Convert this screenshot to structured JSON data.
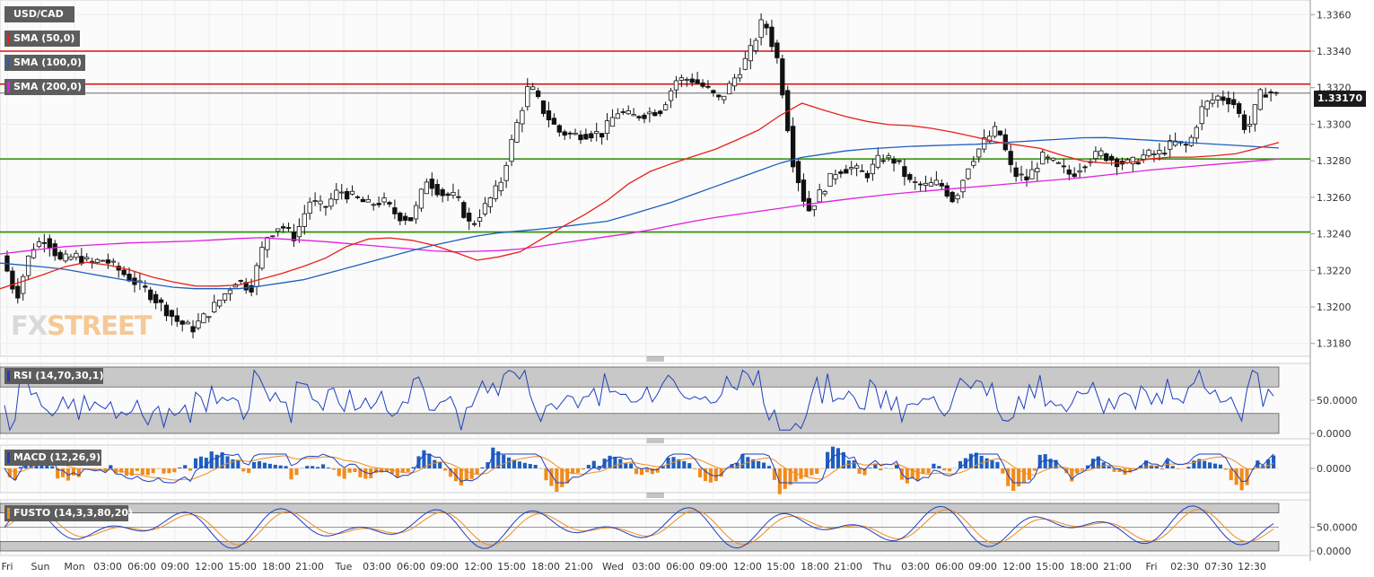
{
  "labels": {
    "symbol": "USD/CAD",
    "sma50": "SMA (50,0)",
    "sma100": "SMA (100,0)",
    "sma200": "SMA (200,0)",
    "rsi": "RSI (14,70,30,1)",
    "macd": "MACD (12,26,9)",
    "fusto": "FUSTO (14,3,3,80,20)"
  },
  "current_price": "1.33170",
  "logo": {
    "part1": "FX",
    "part2": "STREET"
  },
  "colors": {
    "sma50": "#e8201a",
    "sma100": "#1f5fbf",
    "sma200": "#e020e0",
    "resistance": "#dd1111",
    "support": "#2a8a00",
    "rsi_line": "#1f3fbf",
    "macd_line": "#1f3fbf",
    "signal_line": "#f08c1c",
    "hist_pos": "#1f5fbf",
    "hist_neg": "#f08c1c"
  },
  "chart_data": {
    "type": "candlestick",
    "y_ticks": [
      "1.3360",
      "1.3340",
      "1.3320",
      "1.3300",
      "1.3280",
      "1.3260",
      "1.3240",
      "1.3220",
      "1.3200",
      "1.3180"
    ],
    "ylim": [
      1.3173,
      1.3368
    ],
    "resistance_levels": [
      1.334,
      1.3322
    ],
    "support_levels": [
      1.3281,
      1.3241
    ],
    "last_price": 1.3317,
    "x_ticks": [
      "Fri",
      "Sun",
      "Mon",
      "03:00",
      "06:00",
      "09:00",
      "12:00",
      "15:00",
      "18:00",
      "21:00",
      "Tue",
      "03:00",
      "06:00",
      "09:00",
      "12:00",
      "15:00",
      "18:00",
      "21:00",
      "Wed",
      "03:00",
      "06:00",
      "09:00",
      "12:00",
      "15:00",
      "18:00",
      "21:00",
      "Thu",
      "03:00",
      "06:00",
      "09:00",
      "12:00",
      "15:00",
      "18:00",
      "21:00",
      "Fri",
      "02:30",
      "07:30",
      "12:30"
    ],
    "price_path": [
      1.3228,
      1.3205,
      1.3232,
      1.3238,
      1.3225,
      1.3228,
      1.3224,
      1.3226,
      1.322,
      1.3214,
      1.3208,
      1.32,
      1.3192,
      1.3188,
      1.3196,
      1.3205,
      1.3215,
      1.321,
      1.3238,
      1.3245,
      1.3238,
      1.3258,
      1.3254,
      1.3264,
      1.326,
      1.3256,
      1.3258,
      1.325,
      1.3248,
      1.327,
      1.3262,
      1.326,
      1.3244,
      1.3255,
      1.3267,
      1.3296,
      1.3322,
      1.3307,
      1.3296,
      1.3294,
      1.3295,
      1.3295,
      1.3307,
      1.3304,
      1.3306,
      1.3308,
      1.3324,
      1.3325,
      1.332,
      1.3313,
      1.3325,
      1.3338,
      1.3358,
      1.3334,
      1.328,
      1.3252,
      1.3264,
      1.3275,
      1.3276,
      1.3272,
      1.3282,
      1.328,
      1.3268,
      1.3266,
      1.3268,
      1.3258,
      1.3278,
      1.329,
      1.3298,
      1.3273,
      1.327,
      1.3282,
      1.3278,
      1.3272,
      1.328,
      1.3284,
      1.328,
      1.3278,
      1.3283,
      1.3284,
      1.329,
      1.3288,
      1.331,
      1.3315,
      1.3313,
      1.3296,
      1.3318,
      1.3317
    ],
    "sma50": [
      1.321,
      1.3217,
      1.3225,
      1.3222,
      1.3215,
      1.3211,
      1.3212,
      1.3218,
      1.3225,
      1.3237,
      1.3238,
      1.3233,
      1.3225,
      1.323,
      1.3243,
      1.3255,
      1.3272,
      1.328,
      1.3287,
      1.3297,
      1.3312,
      1.3305,
      1.33,
      1.3299,
      1.3295,
      1.329,
      1.3287,
      1.328,
      1.3278,
      1.3282,
      1.3282,
      1.3284,
      1.329
    ],
    "sma100": [
      1.3224,
      1.3221,
      1.3215,
      1.321,
      1.321,
      1.3215,
      1.3224,
      1.3233,
      1.324,
      1.3243,
      1.3247,
      1.3257,
      1.3269,
      1.3281,
      1.3286,
      1.3288,
      1.3289,
      1.3291,
      1.3293,
      1.3291,
      1.3289,
      1.3287
    ],
    "sma200": [
      1.3229,
      1.3233,
      1.3235,
      1.3236,
      1.3238,
      1.3236,
      1.3233,
      1.323,
      1.3231,
      1.3236,
      1.3241,
      1.3248,
      1.3253,
      1.3258,
      1.3262,
      1.3265,
      1.3268,
      1.3271,
      1.3275,
      1.3278,
      1.3281
    ]
  },
  "rsi": {
    "ticks": [
      "50.0000",
      "0.0000"
    ],
    "ob": 70,
    "os": 30
  },
  "macd": {
    "ticks": [
      "0.0000"
    ]
  },
  "fusto": {
    "ticks": [
      "50.0000",
      "0.0000"
    ],
    "upper": 80,
    "lower": 20
  }
}
